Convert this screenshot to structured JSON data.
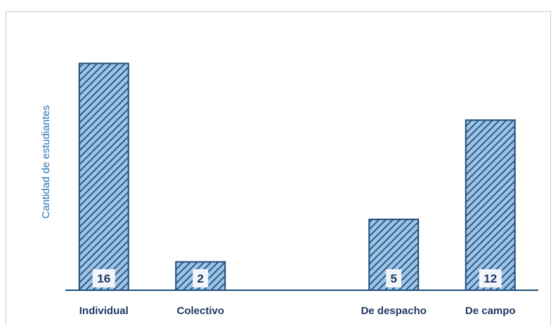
{
  "chart_data": {
    "type": "bar",
    "categories": [
      "Individual",
      "Colectivo",
      "",
      "De despacho",
      "De campo"
    ],
    "values": [
      16,
      2,
      null,
      5,
      12
    ],
    "ylabel": "Cantidad de estudiantes",
    "xlabel": "",
    "ylim": [
      0,
      18
    ],
    "grid": false,
    "legend": "none",
    "colors": {
      "bar_fill": "#9dc3e6",
      "bar_hatch": "#1f4e79",
      "axis": "#1f4e79",
      "label_text": "#1f3864",
      "axis_title": "#2e75b6"
    }
  }
}
